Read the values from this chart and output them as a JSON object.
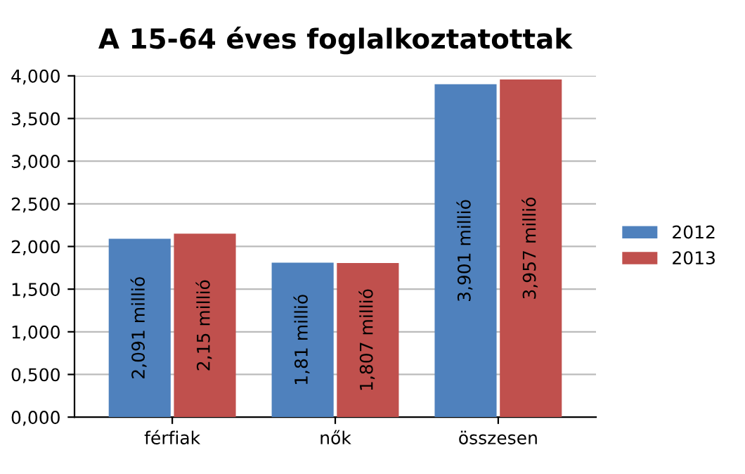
{
  "chart_data": {
    "type": "bar",
    "title": "A 15-64 éves foglalkoztatottak",
    "categories": [
      "férfiak",
      "nők",
      "összesen"
    ],
    "series": [
      {
        "name": "2012",
        "color": "#4f81bd",
        "values": [
          2.091,
          1.81,
          3.901
        ],
        "value_labels": [
          "2,091 millió",
          "1,81 millió",
          "3,901 millió"
        ]
      },
      {
        "name": "2013",
        "color": "#c0504d",
        "values": [
          2.15,
          1.807,
          3.957
        ],
        "value_labels": [
          "2,15 millió",
          "1,807 millió",
          "3,957 millió"
        ]
      }
    ],
    "ylim": [
      0,
      4
    ],
    "yticks": [
      {
        "value": 0,
        "label": "0,000"
      },
      {
        "value": 0.5,
        "label": "0,500"
      },
      {
        "value": 1,
        "label": "1,000"
      },
      {
        "value": 1.5,
        "label": "1,500"
      },
      {
        "value": 2,
        "label": "2,000"
      },
      {
        "value": 2.5,
        "label": "2,500"
      },
      {
        "value": 3,
        "label": "3,000"
      },
      {
        "value": 3.5,
        "label": "3,500"
      },
      {
        "value": 4,
        "label": "4,000"
      }
    ],
    "grid": "y",
    "legend": "right"
  }
}
